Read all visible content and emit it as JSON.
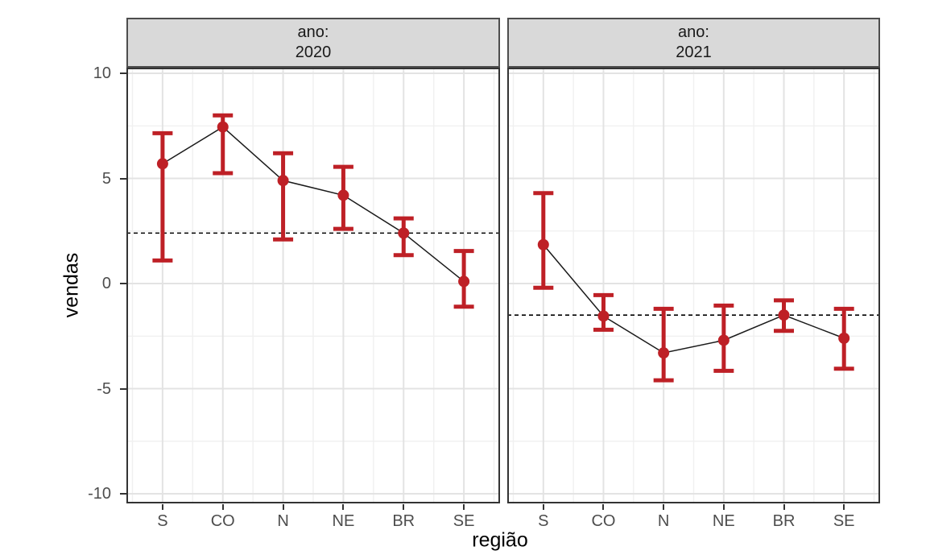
{
  "chart_data": {
    "type": "line",
    "subtype": "pointrange-with-errorbars",
    "facet_variable": "ano",
    "categories": [
      "S",
      "CO",
      "N",
      "NE",
      "BR",
      "SE"
    ],
    "xlabel": "região",
    "ylabel": "vendas",
    "ylim": [
      -10.46,
      10.27
    ],
    "y_breaks": [
      10,
      5,
      0,
      -5,
      -10
    ],
    "y_minor_breaks": [
      7.5,
      2.5,
      -2.5,
      -7.5
    ],
    "grid": true,
    "legend_position": "none",
    "panels": [
      {
        "strip_line1": "ano:",
        "strip_line2": "2020",
        "dashed_reference": 2.4,
        "points": [
          {
            "category": "S",
            "y": 5.7,
            "ymin": 1.1,
            "ymax": 7.15
          },
          {
            "category": "CO",
            "y": 7.45,
            "ymin": 5.25,
            "ymax": 8.0
          },
          {
            "category": "N",
            "y": 4.9,
            "ymin": 2.1,
            "ymax": 6.2
          },
          {
            "category": "NE",
            "y": 4.2,
            "ymin": 2.6,
            "ymax": 5.55
          },
          {
            "category": "BR",
            "y": 2.4,
            "ymin": 1.35,
            "ymax": 3.1
          },
          {
            "category": "SE",
            "y": 0.1,
            "ymin": -1.1,
            "ymax": 1.55
          }
        ]
      },
      {
        "strip_line1": "ano:",
        "strip_line2": "2021",
        "dashed_reference": -1.5,
        "points": [
          {
            "category": "S",
            "y": 1.85,
            "ymin": -0.2,
            "ymax": 4.3
          },
          {
            "category": "CO",
            "y": -1.55,
            "ymin": -2.2,
            "ymax": -0.55
          },
          {
            "category": "N",
            "y": -3.3,
            "ymin": -4.6,
            "ymax": -1.2
          },
          {
            "category": "NE",
            "y": -2.7,
            "ymin": -4.15,
            "ymax": -1.05
          },
          {
            "category": "BR",
            "y": -1.5,
            "ymin": -2.25,
            "ymax": -0.8
          },
          {
            "category": "SE",
            "y": -2.6,
            "ymin": -4.05,
            "ymax": -1.2
          }
        ]
      }
    ],
    "style": {
      "point_color": "#be2026",
      "series_line_color": "#1a1a1a",
      "dashed_line_color": "#000000",
      "strip_fill": "#d9d9d9",
      "strip_border": "#4d4d4d",
      "panel_border": "#333333",
      "grid_major_color": "#e3e3e3",
      "grid_minor_color": "#f0f0f0",
      "tick_label_color": "#4d4d4d",
      "axis_title_color": "#000000"
    }
  }
}
